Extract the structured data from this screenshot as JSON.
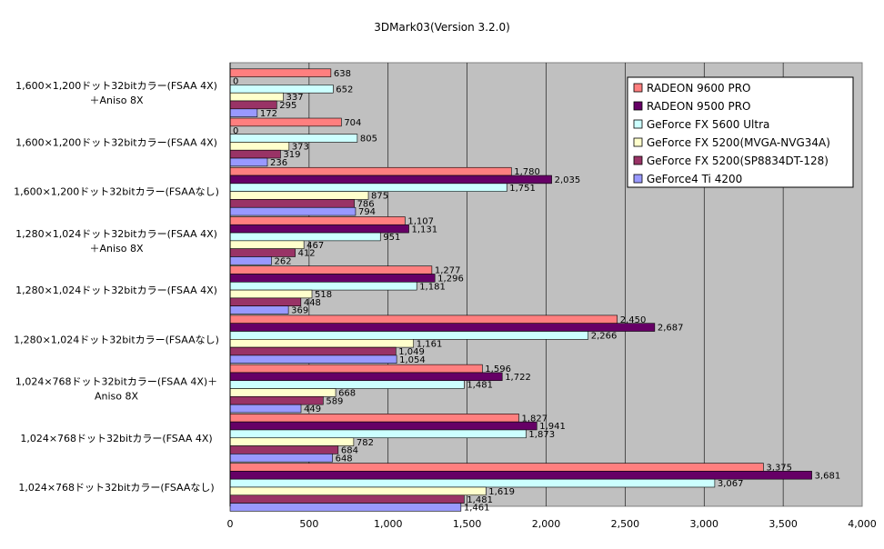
{
  "chart_data": {
    "type": "bar",
    "orientation": "horizontal",
    "title": "3DMark03(Version 3.2.0)",
    "xlim": [
      0,
      4000
    ],
    "x_ticks": [
      0,
      500,
      1000,
      1500,
      2000,
      2500,
      3000,
      3500,
      4000
    ],
    "x_tick_labels": [
      "0",
      "500",
      "1,000",
      "1,500",
      "2,000",
      "2,500",
      "3,000",
      "3,500",
      "4,000"
    ],
    "grid": "vertical",
    "legend_position": "top-right",
    "categories": [
      [
        "1,600×1,200ドット32bitカラー(FSAA 4X)",
        "＋Aniso 8X"
      ],
      [
        "1,600×1,200ドット32bitカラー(FSAA 4X)"
      ],
      [
        "1,600×1,200ドット32bitカラー(FSAAなし)"
      ],
      [
        "1,280×1,024ドット32bitカラー(FSAA 4X)",
        "＋Aniso 8X"
      ],
      [
        "1,280×1,024ドット32bitカラー(FSAA 4X)"
      ],
      [
        "1,280×1,024ドット32bitカラー(FSAAなし)"
      ],
      [
        "1,024×768ドット32bitカラー(FSAA 4X)＋",
        "Aniso 8X"
      ],
      [
        "1,024×768ドット32bitカラー(FSAA 4X)"
      ],
      [
        "1,024×768ドット32bitカラー(FSAAなし)"
      ]
    ],
    "series": [
      {
        "name": "RADEON 9600 PRO",
        "color": "#ff7f7f",
        "values": [
          638,
          704,
          1780,
          1107,
          1277,
          2450,
          1596,
          1827,
          3375
        ],
        "labels": [
          "638",
          "704",
          "1,780",
          "1,107",
          "1,277",
          "2,450",
          "1,596",
          "1,827",
          "3,375"
        ]
      },
      {
        "name": "RADEON 9500 PRO",
        "color": "#660066",
        "values": [
          0,
          0,
          2035,
          1131,
          1296,
          2687,
          1722,
          1941,
          3681
        ],
        "labels": [
          "0",
          "0",
          "2,035",
          "1,131",
          "1,296",
          "2,687",
          "1,722",
          "1,941",
          "3,681"
        ]
      },
      {
        "name": "GeForce FX 5600 Ultra",
        "color": "#ccffff",
        "values": [
          652,
          805,
          1751,
          951,
          1181,
          2266,
          1481,
          1873,
          3067
        ],
        "labels": [
          "652",
          "805",
          "1,751",
          "951",
          "1,181",
          "2,266",
          "1,481",
          "1,873",
          "3,067"
        ]
      },
      {
        "name": "GeForce FX 5200(MVGA-NVG34A)",
        "color": "#ffffcc",
        "values": [
          337,
          373,
          875,
          467,
          518,
          1161,
          668,
          782,
          1619
        ],
        "labels": [
          "337",
          "373",
          "875",
          "467",
          "518",
          "1,161",
          "668",
          "782",
          "1,619"
        ]
      },
      {
        "name": "GeForce FX 5200(SP8834DT-128)",
        "color": "#993366",
        "values": [
          295,
          319,
          786,
          412,
          448,
          1049,
          589,
          684,
          1481
        ],
        "labels": [
          "295",
          "319",
          "786",
          "412",
          "448",
          "1,049",
          "589",
          "684",
          "1,481"
        ]
      },
      {
        "name": "GeForce4 Ti 4200",
        "color": "#9999ff",
        "values": [
          172,
          236,
          794,
          262,
          369,
          1054,
          449,
          648,
          1461
        ],
        "labels": [
          "172",
          "236",
          "794",
          "262",
          "369",
          "1,054",
          "449",
          "648",
          "1,461"
        ]
      }
    ]
  }
}
